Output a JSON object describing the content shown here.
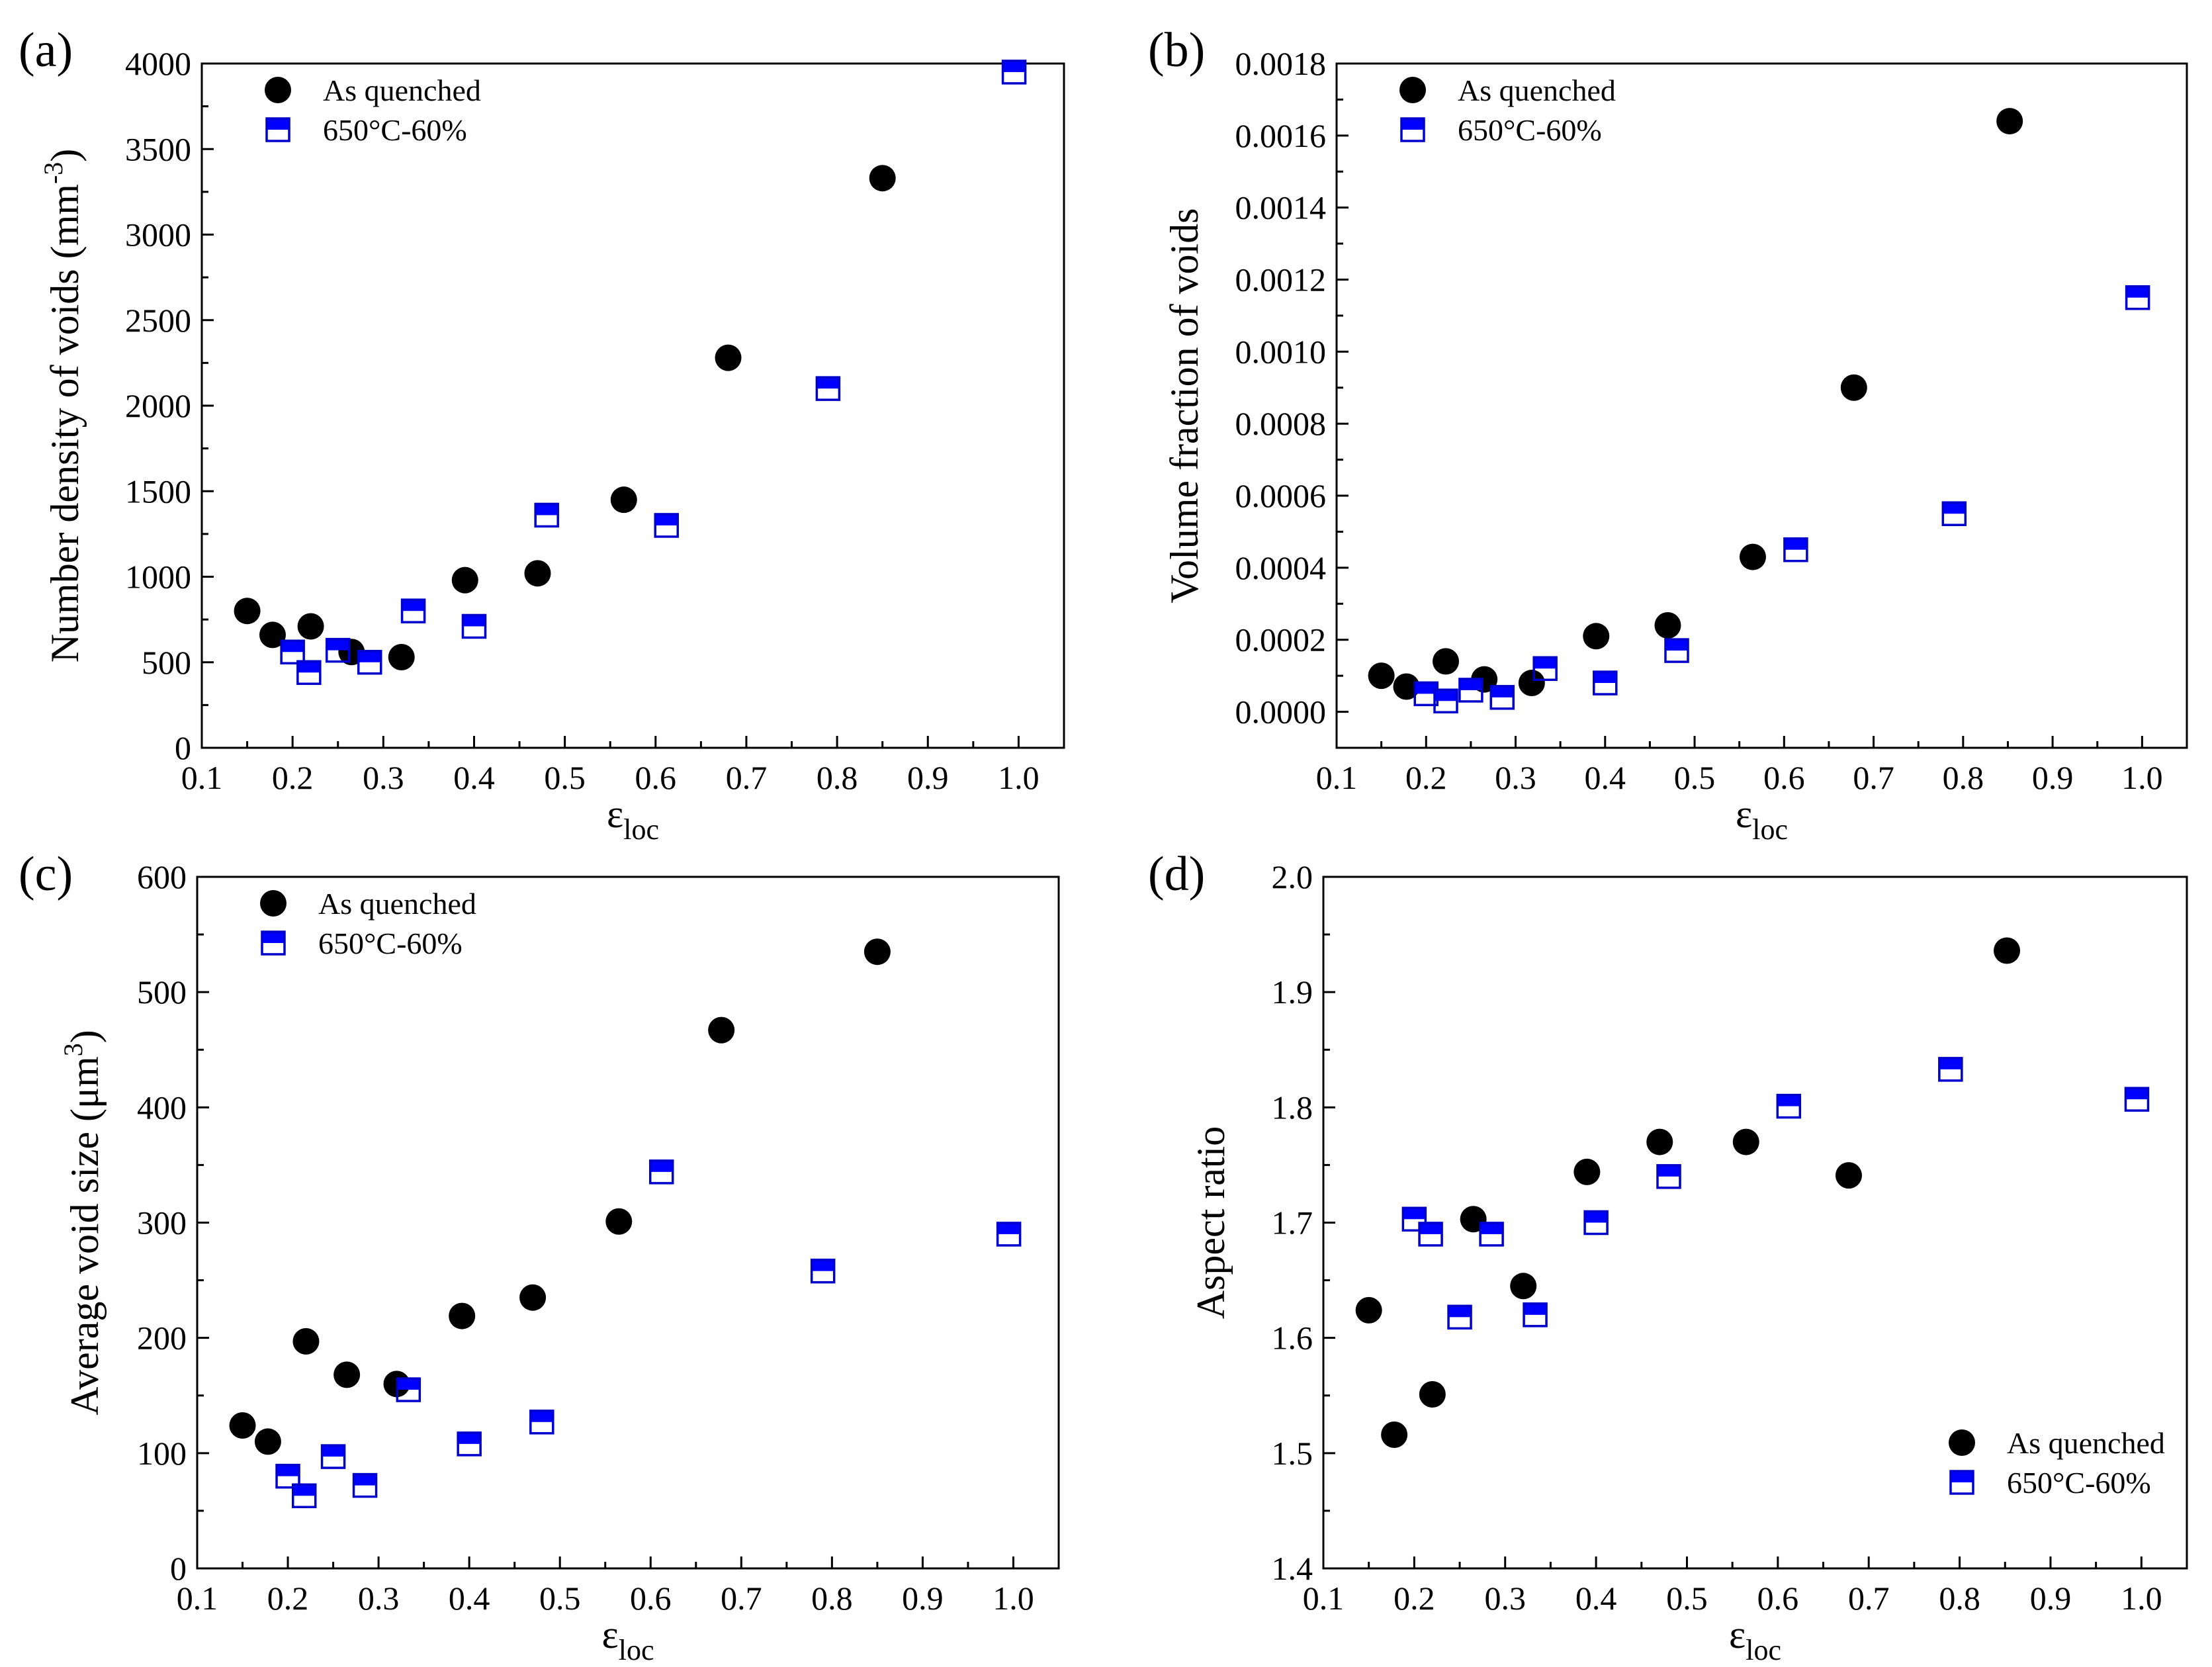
{
  "colors": {
    "as_quenched": "#000000",
    "annealed_fill": "#0000ff",
    "annealed_edge": "#0000cc",
    "axes": "#000000",
    "background": "#ffffff"
  },
  "legend": {
    "series_a": "As quenched",
    "series_b": "650°C-60%"
  },
  "chart_data": [
    {
      "type": "scatter",
      "panel": "(a)",
      "xlabel_main": "ε",
      "xlabel_sub": "loc",
      "ylabel_main": "Number density of voids (mm",
      "ylabel_sup": "-3",
      "ylabel_end": ")",
      "xlim": [
        0.1,
        1.05
      ],
      "ylim": [
        0,
        4000
      ],
      "xticks": [
        "0.1",
        "0.2",
        "0.3",
        "0.4",
        "0.5",
        "0.6",
        "0.7",
        "0.8",
        "0.9",
        "1.0"
      ],
      "xtick_values": [
        0.1,
        0.2,
        0.3,
        0.4,
        0.5,
        0.6,
        0.7,
        0.8,
        0.9,
        1.0
      ],
      "yticks": [
        "0",
        "500",
        "1000",
        "1500",
        "2000",
        "2500",
        "3000",
        "3500",
        "4000"
      ],
      "ytick_values": [
        0,
        500,
        1000,
        1500,
        2000,
        2500,
        3000,
        3500,
        4000
      ],
      "legend_position": "top-left",
      "series": [
        {
          "name": "As quenched",
          "marker": "circle",
          "x": [
            0.15,
            0.178,
            0.22,
            0.265,
            0.32,
            0.39,
            0.47,
            0.565,
            0.68,
            0.85
          ],
          "y": [
            800,
            660,
            710,
            560,
            530,
            980,
            1020,
            1450,
            2280,
            3330
          ]
        },
        {
          "name": "650°C-60%",
          "marker": "half-square",
          "x": [
            0.2,
            0.218,
            0.25,
            0.285,
            0.333,
            0.4,
            0.48,
            0.612,
            0.79,
            0.995
          ],
          "y": [
            560,
            440,
            570,
            500,
            800,
            710,
            1360,
            1300,
            2100,
            3950
          ]
        }
      ]
    },
    {
      "type": "scatter",
      "panel": "(b)",
      "xlabel_main": "ε",
      "xlabel_sub": "loc",
      "ylabel_main": "Volume fraction of voids",
      "ylabel_sup": "",
      "ylabel_end": "",
      "xlim": [
        0.1,
        1.05
      ],
      "ylim": [
        -0.0001,
        0.0018
      ],
      "xticks": [
        "0.1",
        "0.2",
        "0.3",
        "0.4",
        "0.5",
        "0.6",
        "0.7",
        "0.8",
        "0.9",
        "1.0"
      ],
      "xtick_values": [
        0.1,
        0.2,
        0.3,
        0.4,
        0.5,
        0.6,
        0.7,
        0.8,
        0.9,
        1.0
      ],
      "yticks": [
        "0.0000",
        "0.0002",
        "0.0004",
        "0.0006",
        "0.0008",
        "0.0010",
        "0.0012",
        "0.0014",
        "0.0016",
        "0.0018"
      ],
      "ytick_values": [
        0,
        0.0002,
        0.0004,
        0.0006,
        0.0008,
        0.001,
        0.0012,
        0.0014,
        0.0016,
        0.0018
      ],
      "legend_position": "top-left",
      "series": [
        {
          "name": "As quenched",
          "marker": "circle",
          "x": [
            0.15,
            0.178,
            0.222,
            0.265,
            0.318,
            0.39,
            0.47,
            0.565,
            0.678,
            0.852
          ],
          "y": [
            0.0001,
            7e-05,
            0.00014,
            9e-05,
            8e-05,
            0.00021,
            0.00024,
            0.00043,
            0.0009,
            0.00164
          ]
        },
        {
          "name": "650°C-60%",
          "marker": "half-square",
          "x": [
            0.2,
            0.222,
            0.25,
            0.285,
            0.333,
            0.4,
            0.48,
            0.613,
            0.79,
            0.995
          ],
          "y": [
            5e-05,
            3e-05,
            6e-05,
            4e-05,
            0.00012,
            8e-05,
            0.00017,
            0.00045,
            0.00055,
            0.00115
          ]
        }
      ]
    },
    {
      "type": "scatter",
      "panel": "(c)",
      "xlabel_main": "ε",
      "xlabel_sub": "loc",
      "ylabel_main": "Average void size (μm",
      "ylabel_sup": "3",
      "ylabel_end": ")",
      "xlim": [
        0.1,
        1.05
      ],
      "ylim": [
        0,
        600
      ],
      "xticks": [
        "0.1",
        "0.2",
        "0.3",
        "0.4",
        "0.5",
        "0.6",
        "0.7",
        "0.8",
        "0.9",
        "1.0"
      ],
      "xtick_values": [
        0.1,
        0.2,
        0.3,
        0.4,
        0.5,
        0.6,
        0.7,
        0.8,
        0.9,
        1.0
      ],
      "yticks": [
        "0",
        "100",
        "200",
        "300",
        "400",
        "500",
        "600"
      ],
      "ytick_values": [
        0,
        100,
        200,
        300,
        400,
        500,
        600
      ],
      "legend_position": "top-left",
      "series": [
        {
          "name": "As quenched",
          "marker": "circle",
          "x": [
            0.15,
            0.178,
            0.22,
            0.265,
            0.32,
            0.392,
            0.47,
            0.565,
            0.678,
            0.85
          ],
          "y": [
            124,
            110,
            197,
            168,
            160,
            219,
            235,
            301,
            467,
            535
          ]
        },
        {
          "name": "650°C-60%",
          "marker": "half-square",
          "x": [
            0.2,
            0.218,
            0.25,
            0.285,
            0.333,
            0.4,
            0.48,
            0.612,
            0.79,
            0.995
          ],
          "y": [
            80,
            63,
            97,
            72,
            155,
            108,
            127,
            344,
            258,
            290
          ]
        }
      ]
    },
    {
      "type": "scatter",
      "panel": "(d)",
      "xlabel_main": "ε",
      "xlabel_sub": "loc",
      "ylabel_main": "Aspect ratio",
      "ylabel_sup": "",
      "ylabel_end": "",
      "xlim": [
        0.1,
        1.05
      ],
      "ylim": [
        1.4,
        2.0
      ],
      "xticks": [
        "0.1",
        "0.2",
        "0.3",
        "0.4",
        "0.5",
        "0.6",
        "0.7",
        "0.8",
        "0.9",
        "1.0"
      ],
      "xtick_values": [
        0.1,
        0.2,
        0.3,
        0.4,
        0.5,
        0.6,
        0.7,
        0.8,
        0.9,
        1.0
      ],
      "yticks": [
        "1.4",
        "1.5",
        "1.6",
        "1.7",
        "1.8",
        "1.9",
        "2.0"
      ],
      "ytick_values": [
        1.4,
        1.5,
        1.6,
        1.7,
        1.8,
        1.9,
        2.0
      ],
      "legend_position": "bottom-right",
      "series": [
        {
          "name": "As quenched",
          "marker": "circle",
          "x": [
            0.15,
            0.178,
            0.22,
            0.265,
            0.32,
            0.39,
            0.47,
            0.565,
            0.678,
            0.852
          ],
          "y": [
            1.624,
            1.516,
            1.551,
            1.703,
            1.645,
            1.744,
            1.77,
            1.77,
            1.741,
            1.936
          ]
        },
        {
          "name": "650°C-60%",
          "marker": "half-square",
          "x": [
            0.2,
            0.218,
            0.25,
            0.285,
            0.333,
            0.4,
            0.48,
            0.612,
            0.79,
            0.995
          ],
          "y": [
            1.703,
            1.69,
            1.618,
            1.69,
            1.62,
            1.7,
            1.74,
            1.801,
            1.833,
            1.807
          ]
        }
      ]
    }
  ]
}
